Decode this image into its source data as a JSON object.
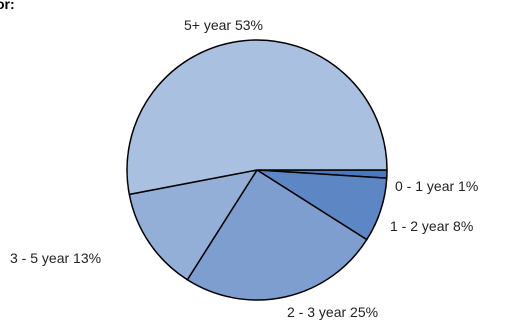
{
  "title": "or:",
  "chart_data": {
    "type": "pie",
    "categories": [
      "0 - 1 year",
      "1 - 2 year",
      "2 - 3 year",
      "3 - 5 year",
      "5+ year"
    ],
    "values": [
      1,
      8,
      25,
      13,
      53
    ],
    "labels": [
      "0 - 1 year 1%",
      "1 - 2 year 8%",
      "2 - 3 year 25%",
      "3 - 5 year 13%",
      "5+ year 53%"
    ],
    "colors": [
      "#4a78be",
      "#5d86c5",
      "#7e9ed0",
      "#93afd8",
      "#a9c0e1"
    ],
    "legend": "none"
  }
}
